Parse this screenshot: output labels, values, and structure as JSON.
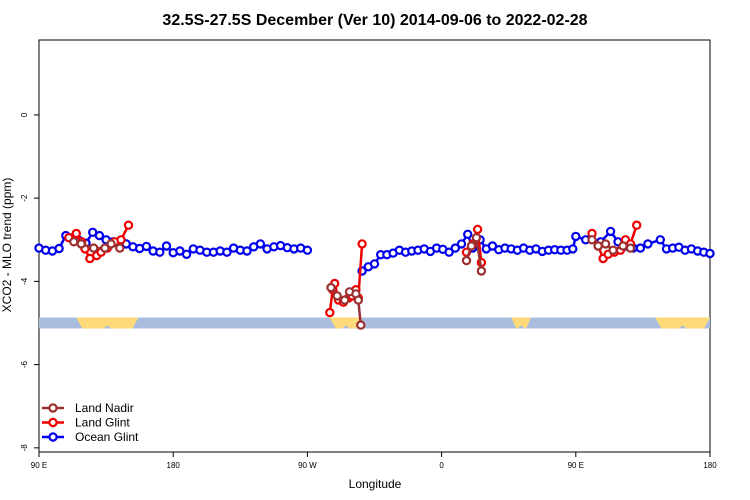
{
  "chart_data": {
    "type": "line",
    "title": "32.5S-27.5S December (Ver 10)   2014-09-06 to 2022-02-28",
    "xlabel": "Longitude",
    "ylabel": "XCO2 - MLO trend (ppm)",
    "xlim": [
      -90,
      180
    ],
    "ylim": [
      -8.1,
      1.8
    ],
    "x_ticks": [
      {
        "value": -90,
        "label": "90 E"
      },
      {
        "value": -36,
        "label": "180"
      },
      {
        "value": 18,
        "label": "90 W"
      },
      {
        "value": 72,
        "label": "0"
      },
      {
        "value": 126,
        "label": "90 E"
      },
      {
        "value": 180,
        "label": "180"
      }
    ],
    "y_ticks": [
      {
        "value": 0,
        "label": "0"
      },
      {
        "value": -2,
        "label": "-2"
      },
      {
        "value": -4,
        "label": "-4"
      },
      {
        "value": -6,
        "label": "-6"
      },
      {
        "value": -8,
        "label": "-8"
      }
    ],
    "land_mask": {
      "y": -5.0,
      "land_color": "#ffd97a",
      "ocean_color": "#a9bedf",
      "land_segments": [
        [
          -75,
          -50
        ],
        [
          27,
          40
        ],
        [
          100,
          108
        ],
        [
          158,
          182
        ]
      ]
    },
    "legend": {
      "position": "bottom-left",
      "entries": [
        {
          "label": "Land Nadir",
          "color": "#9b3030"
        },
        {
          "label": "Land Glint",
          "color": "#ee0000"
        },
        {
          "label": "Ocean Glint",
          "color": "#0000ee"
        }
      ]
    },
    "series": [
      {
        "name": "Ocean Glint",
        "color": "#0000ee",
        "points": [
          [
            -90.0,
            -3.2
          ],
          [
            -87.3,
            -3.25
          ],
          [
            -84.6,
            -3.27
          ],
          [
            -81.9,
            -3.21
          ],
          [
            -79.2,
            -2.9
          ],
          [
            -76.5,
            -2.95
          ],
          [
            -73.8,
            -3.02
          ],
          [
            -71.1,
            -3.08
          ],
          [
            -68.4,
            -2.82
          ],
          [
            -65.7,
            -2.9
          ],
          [
            -63.0,
            -3.0
          ],
          [
            -60.3,
            -3.05
          ],
          [
            -57.6,
            -3.1
          ],
          [
            -54.9,
            -3.1
          ],
          [
            -52.2,
            -3.17
          ],
          [
            -49.5,
            -3.21
          ],
          [
            -46.8,
            -3.16
          ],
          [
            -44.1,
            -3.27
          ],
          [
            -41.4,
            -3.3
          ],
          [
            -38.7,
            -3.15
          ],
          [
            -36.0,
            -3.31
          ],
          [
            -33.3,
            -3.27
          ],
          [
            -30.6,
            -3.35
          ],
          [
            -27.9,
            -3.22
          ],
          [
            -25.2,
            -3.25
          ],
          [
            -22.5,
            -3.3
          ],
          [
            -19.8,
            -3.3
          ],
          [
            -17.1,
            -3.27
          ],
          [
            -14.4,
            -3.3
          ],
          [
            -11.7,
            -3.2
          ],
          [
            -9.0,
            -3.25
          ],
          [
            -6.3,
            -3.27
          ],
          [
            -3.6,
            -3.17
          ],
          [
            -0.9,
            -3.1
          ],
          [
            1.8,
            -3.22
          ],
          [
            4.5,
            -3.17
          ],
          [
            7.2,
            -3.14
          ],
          [
            9.9,
            -3.19
          ],
          [
            12.6,
            -3.22
          ],
          [
            15.3,
            -3.2
          ],
          [
            18.0,
            -3.25
          ],
          [
            40.0,
            -3.75
          ],
          [
            42.5,
            -3.65
          ],
          [
            45.0,
            -3.58
          ],
          [
            47.5,
            -3.36
          ],
          [
            50.0,
            -3.36
          ],
          [
            52.5,
            -3.32
          ],
          [
            55.0,
            -3.25
          ],
          [
            57.5,
            -3.3
          ],
          [
            60.0,
            -3.27
          ],
          [
            62.5,
            -3.25
          ],
          [
            65.0,
            -3.22
          ],
          [
            67.5,
            -3.28
          ],
          [
            70.0,
            -3.2
          ],
          [
            72.5,
            -3.23
          ],
          [
            75.0,
            -3.3
          ],
          [
            77.5,
            -3.2
          ],
          [
            80.0,
            -3.1
          ],
          [
            82.5,
            -2.87
          ],
          [
            84.5,
            -3.2
          ],
          [
            87.5,
            -3.0
          ],
          [
            90.0,
            -3.22
          ],
          [
            92.5,
            -3.15
          ],
          [
            95.0,
            -3.24
          ],
          [
            97.5,
            -3.2
          ],
          [
            100.0,
            -3.22
          ],
          [
            102.5,
            -3.25
          ],
          [
            105.0,
            -3.2
          ],
          [
            107.5,
            -3.25
          ],
          [
            110.0,
            -3.22
          ],
          [
            112.5,
            -3.28
          ],
          [
            115.0,
            -3.25
          ],
          [
            117.5,
            -3.24
          ],
          [
            120.0,
            -3.25
          ],
          [
            122.5,
            -3.25
          ],
          [
            124.8,
            -3.22
          ],
          [
            126.0,
            -2.92
          ],
          [
            130.0,
            -3.0
          ],
          [
            136.0,
            -3.05
          ],
          [
            140.0,
            -2.8
          ],
          [
            143.0,
            -3.05
          ],
          [
            146.0,
            -3.15
          ],
          [
            149.0,
            -3.2
          ],
          [
            152.0,
            -3.2
          ],
          [
            155.0,
            -3.1
          ],
          [
            160.0,
            -3.0
          ],
          [
            162.5,
            -3.22
          ],
          [
            165.0,
            -3.2
          ],
          [
            167.5,
            -3.18
          ],
          [
            170.0,
            -3.25
          ],
          [
            172.5,
            -3.22
          ],
          [
            175.0,
            -3.27
          ],
          [
            177.5,
            -3.3
          ],
          [
            180.0,
            -3.33
          ]
        ]
      },
      {
        "name": "Land Glint",
        "color": "#ee0000",
        "segments": [
          [
            [
              -78.0,
              -2.95
            ],
            [
              -75.0,
              -2.85
            ],
            [
              -72.8,
              -3.05
            ],
            [
              -71.5,
              -3.22
            ],
            [
              -69.5,
              -3.45
            ],
            [
              -66.8,
              -3.38
            ],
            [
              -65.0,
              -3.3
            ],
            [
              -62.5,
              -3.2
            ],
            [
              -59.5,
              -3.05
            ],
            [
              -57.0,
              -3.0
            ],
            [
              -54.0,
              -2.65
            ]
          ],
          [
            [
              27.0,
              -4.75
            ],
            [
              28.2,
              -4.2
            ],
            [
              29.0,
              -4.05
            ],
            [
              30.5,
              -4.45
            ],
            [
              32.5,
              -4.5
            ],
            [
              34.5,
              -4.4
            ],
            [
              36.0,
              -4.35
            ],
            [
              37.5,
              -4.2
            ],
            [
              38.5,
              -4.4
            ],
            [
              40.0,
              -3.1
            ]
          ],
          [
            [
              82.0,
              -3.3
            ],
            [
              84.5,
              -3.1
            ],
            [
              86.5,
              -2.75
            ],
            [
              88.0,
              -3.55
            ]
          ],
          [
            [
              132.5,
              -2.85
            ],
            [
              135.0,
              -3.15
            ],
            [
              137.0,
              -3.45
            ],
            [
              139.0,
              -3.35
            ],
            [
              141.5,
              -3.3
            ],
            [
              144.0,
              -3.25
            ],
            [
              146.0,
              -3.0
            ],
            [
              148.0,
              -3.1
            ],
            [
              150.5,
              -2.65
            ]
          ]
        ]
      },
      {
        "name": "Land Nadir",
        "color": "#9b3030",
        "segments": [
          [
            [
              -76.0,
              -3.05
            ],
            [
              -73.0,
              -3.1
            ],
            [
              -68.0,
              -3.2
            ],
            [
              -63.5,
              -3.2
            ],
            [
              -61.0,
              -3.1
            ],
            [
              -57.5,
              -3.2
            ]
          ],
          [
            [
              27.5,
              -4.15
            ],
            [
              30.0,
              -4.35
            ],
            [
              33.0,
              -4.45
            ],
            [
              35.0,
              -4.25
            ],
            [
              37.5,
              -4.3
            ],
            [
              38.5,
              -4.45
            ],
            [
              39.5,
              -5.05
            ]
          ],
          [
            [
              82.0,
              -3.5
            ],
            [
              84.0,
              -3.15
            ],
            [
              86.0,
              -2.95
            ],
            [
              88.0,
              -3.75
            ]
          ],
          [
            [
              132.5,
              -3.0
            ],
            [
              135.0,
              -3.15
            ],
            [
              138.0,
              -3.1
            ],
            [
              141.0,
              -3.25
            ],
            [
              145.0,
              -3.15
            ],
            [
              148.0,
              -3.2
            ]
          ]
        ]
      }
    ]
  }
}
